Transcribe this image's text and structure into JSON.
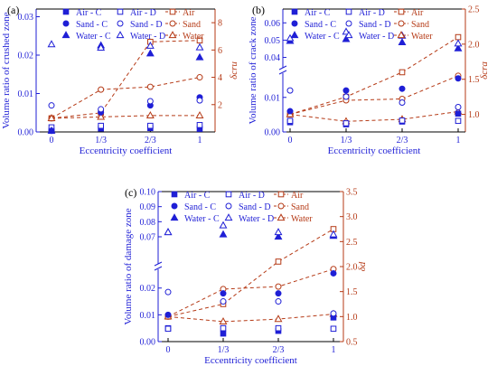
{
  "colors": {
    "left": "#1f1fd6",
    "right": "#b53a16",
    "axis": "#000000"
  },
  "legend_columns": [
    [
      "Air - C",
      "Sand - C",
      "Water - C"
    ],
    [
      "Air - D",
      "Sand - D",
      "Water - D"
    ],
    [
      "Air",
      "Sand",
      "Water"
    ]
  ],
  "chart_data": [
    {
      "type": "scatter+line",
      "panel_label": "(a)",
      "xlabel": "Eccentricity coefficient",
      "categories": [
        "0",
        "1/3",
        "2/3",
        "1"
      ],
      "x": [
        0,
        0.3333,
        0.6667,
        1
      ],
      "ylabel": "Volume ratio of crushed zone",
      "ylabel_right": "δcru",
      "y_break": null,
      "ylim": [
        0,
        0.032
      ],
      "yticks": [
        "0.00",
        "0.01",
        "0.02",
        "0.03"
      ],
      "ylim_right": [
        0,
        9
      ],
      "yticks_right": [
        "2",
        "4",
        "6",
        "8"
      ],
      "series_left": [
        {
          "name": "Air - C",
          "values": [
            0.0003,
            0.0009,
            0.001,
            0.0008
          ]
        },
        {
          "name": "Air - D",
          "values": [
            0.0012,
            0.0016,
            0.0016,
            0.0018
          ]
        },
        {
          "name": "Sand - C",
          "values": [
            0.0003,
            0.0051,
            0.0069,
            0.009
          ]
        },
        {
          "name": "Sand - D",
          "values": [
            0.0069,
            0.0059,
            0.008,
            0.0082
          ]
        },
        {
          "name": "Water - C",
          "values": [
            0.0003,
            0.0225,
            0.0204,
            0.0194
          ]
        },
        {
          "name": "Water - D",
          "values": [
            0.0228,
            0.0219,
            0.0224,
            0.022
          ]
        }
      ],
      "series_right": [
        {
          "name": "Air",
          "values": [
            1.0,
            1.4,
            6.6,
            6.7
          ]
        },
        {
          "name": "Sand",
          "values": [
            1.0,
            3.1,
            3.3,
            4.0
          ]
        },
        {
          "name": "Water",
          "values": [
            1.0,
            1.1,
            1.2,
            1.2
          ]
        }
      ]
    },
    {
      "type": "scatter+line",
      "panel_label": "(b)",
      "xlabel": "Eccentricity coefficient",
      "categories": [
        "0",
        "1/3",
        "2/3",
        "1"
      ],
      "x": [
        0,
        0.3333,
        0.6667,
        1
      ],
      "ylabel": "Volume ratio of crack zone",
      "ylabel_right": "δcra",
      "y_break": {
        "lower": [
          0,
          0.017
        ],
        "upper": [
          0.034,
          0.068
        ],
        "split": 0.5
      },
      "yticks_lower": [
        "0.00",
        "0.01"
      ],
      "yticks_upper": [
        "0.04",
        "0.05",
        "0.06"
      ],
      "ylim_right": [
        0.75,
        2.5
      ],
      "yticks_right": [
        "1.0",
        "1.5",
        "2.0",
        "2.5"
      ],
      "series_left": [
        {
          "name": "Air - C",
          "values": [
            0.0028,
            0.0022,
            0.003,
            0.0053
          ]
        },
        {
          "name": "Air - D",
          "values": [
            0.0032,
            0.0025,
            0.0033,
            0.0032
          ]
        },
        {
          "name": "Sand - C",
          "values": [
            0.006,
            0.012,
            0.0125,
            0.0155
          ]
        },
        {
          "name": "Sand - D",
          "values": [
            0.012,
            0.0102,
            0.0085,
            0.0072
          ]
        },
        {
          "name": "Water - C",
          "values": [
            0.0495,
            0.0505,
            0.0487,
            0.0452
          ]
        },
        {
          "name": "Water - D",
          "values": [
            0.051,
            0.0548,
            0.0525,
            0.048
          ]
        }
      ],
      "series_right": [
        {
          "name": "Air",
          "values": [
            1.0,
            1.25,
            1.6,
            2.1
          ]
        },
        {
          "name": "Sand",
          "values": [
            1.0,
            1.2,
            1.22,
            1.55
          ]
        },
        {
          "name": "Water",
          "values": [
            1.0,
            0.9,
            0.93,
            1.04
          ]
        }
      ]
    },
    {
      "type": "scatter+line",
      "panel_label": "(c)",
      "xlabel": "Eccentricity coefficient",
      "categories": [
        "0",
        "1/3",
        "2/3",
        "1"
      ],
      "x": [
        0,
        0.3333,
        0.6667,
        1
      ],
      "ylabel": "Volume ratio of damage zone",
      "ylabel_right": "δd",
      "y_break": {
        "lower": [
          0,
          0.027
        ],
        "upper": [
          0.052,
          0.1
        ],
        "split": 0.5
      },
      "yticks_lower": [
        "0.00",
        "0.01",
        "0.02"
      ],
      "yticks_upper": [
        "0.07",
        "0.08",
        "0.09",
        "0.10"
      ],
      "ylim_right": [
        0.5,
        3.5
      ],
      "yticks_right": [
        "0.5",
        "1.0",
        "1.5",
        "2.0",
        "2.5",
        "3.0",
        "3.5"
      ],
      "series_left": [
        {
          "name": "Air - C",
          "values": [
            0.005,
            0.003,
            0.004,
            0.009
          ]
        },
        {
          "name": "Air - D",
          "values": [
            0.0048,
            0.005,
            0.005,
            0.0048
          ]
        },
        {
          "name": "Sand - C",
          "values": [
            0.01,
            0.018,
            0.018,
            0.0255
          ]
        },
        {
          "name": "Sand - D",
          "values": [
            0.0185,
            0.015,
            0.015,
            0.0105
          ]
        },
        {
          "name": "Water - C",
          "values": [
            0.073,
            0.0715,
            0.07,
            0.0705
          ]
        },
        {
          "name": "Water - D",
          "values": [
            0.073,
            0.0775,
            0.073,
            0.0715
          ]
        }
      ],
      "series_right": [
        {
          "name": "Air",
          "values": [
            1.0,
            1.25,
            2.1,
            2.75
          ]
        },
        {
          "name": "Sand",
          "values": [
            1.0,
            1.55,
            1.6,
            1.95
          ]
        },
        {
          "name": "Water",
          "values": [
            1.0,
            0.9,
            0.95,
            1.05
          ]
        }
      ]
    }
  ]
}
